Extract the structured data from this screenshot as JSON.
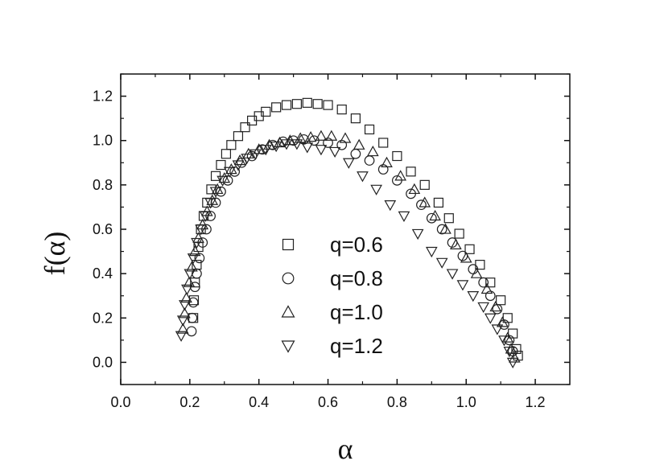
{
  "chart_data": {
    "type": "scatter",
    "title": "",
    "xlabel": "α",
    "ylabel": "f(α)",
    "xlim": [
      0.0,
      1.3
    ],
    "ylim": [
      -0.1,
      1.3
    ],
    "x_ticks": [
      0.0,
      0.2,
      0.4,
      0.6,
      0.8,
      1.0,
      1.2
    ],
    "x_tick_labels": [
      "0.0",
      "0.2",
      "0.4",
      "0.6",
      "0.8",
      "1.0",
      "1.2"
    ],
    "y_ticks": [
      0.0,
      0.2,
      0.4,
      0.6,
      0.8,
      1.0,
      1.2
    ],
    "y_tick_labels": [
      "0.0",
      "0.2",
      "0.4",
      "0.6",
      "0.8",
      "1.0",
      "1.2"
    ],
    "grid": false,
    "legend_position": "center",
    "series": [
      {
        "name": "q=0.6",
        "marker": "square",
        "points": [
          [
            0.21,
            0.2
          ],
          [
            0.212,
            0.28
          ],
          [
            0.215,
            0.36
          ],
          [
            0.22,
            0.44
          ],
          [
            0.225,
            0.52
          ],
          [
            0.232,
            0.6
          ],
          [
            0.24,
            0.66
          ],
          [
            0.25,
            0.72
          ],
          [
            0.262,
            0.78
          ],
          [
            0.275,
            0.84
          ],
          [
            0.29,
            0.89
          ],
          [
            0.305,
            0.94
          ],
          [
            0.32,
            0.98
          ],
          [
            0.34,
            1.02
          ],
          [
            0.36,
            1.06
          ],
          [
            0.38,
            1.09
          ],
          [
            0.4,
            1.11
          ],
          [
            0.42,
            1.13
          ],
          [
            0.45,
            1.15
          ],
          [
            0.48,
            1.16
          ],
          [
            0.51,
            1.165
          ],
          [
            0.54,
            1.17
          ],
          [
            0.57,
            1.165
          ],
          [
            0.6,
            1.16
          ],
          [
            0.64,
            1.14
          ],
          [
            0.68,
            1.1
          ],
          [
            0.72,
            1.05
          ],
          [
            0.76,
            0.99
          ],
          [
            0.8,
            0.93
          ],
          [
            0.84,
            0.86
          ],
          [
            0.88,
            0.8
          ],
          [
            0.92,
            0.72
          ],
          [
            0.95,
            0.65
          ],
          [
            0.98,
            0.58
          ],
          [
            1.01,
            0.51
          ],
          [
            1.04,
            0.44
          ],
          [
            1.07,
            0.36
          ],
          [
            1.1,
            0.28
          ],
          [
            1.12,
            0.2
          ],
          [
            1.135,
            0.13
          ],
          [
            1.145,
            0.06
          ],
          [
            1.15,
            0.03
          ]
        ]
      },
      {
        "name": "q=0.8",
        "marker": "circle",
        "points": [
          [
            0.205,
            0.14
          ],
          [
            0.207,
            0.2
          ],
          [
            0.21,
            0.27
          ],
          [
            0.215,
            0.34
          ],
          [
            0.22,
            0.4
          ],
          [
            0.228,
            0.47
          ],
          [
            0.237,
            0.54
          ],
          [
            0.248,
            0.6
          ],
          [
            0.26,
            0.66
          ],
          [
            0.275,
            0.72
          ],
          [
            0.29,
            0.77
          ],
          [
            0.31,
            0.82
          ],
          [
            0.33,
            0.86
          ],
          [
            0.35,
            0.9
          ],
          [
            0.38,
            0.93
          ],
          [
            0.41,
            0.96
          ],
          [
            0.44,
            0.98
          ],
          [
            0.47,
            0.995
          ],
          [
            0.5,
            1.0
          ],
          [
            0.53,
            1.005
          ],
          [
            0.56,
            1.0
          ],
          [
            0.6,
            0.99
          ],
          [
            0.64,
            0.98
          ],
          [
            0.68,
            0.94
          ],
          [
            0.72,
            0.91
          ],
          [
            0.76,
            0.87
          ],
          [
            0.8,
            0.82
          ],
          [
            0.84,
            0.76
          ],
          [
            0.87,
            0.71
          ],
          [
            0.9,
            0.65
          ],
          [
            0.93,
            0.6
          ],
          [
            0.96,
            0.54
          ],
          [
            0.99,
            0.48
          ],
          [
            1.02,
            0.42
          ],
          [
            1.05,
            0.36
          ],
          [
            1.07,
            0.3
          ],
          [
            1.09,
            0.24
          ],
          [
            1.11,
            0.17
          ],
          [
            1.125,
            0.1
          ],
          [
            1.135,
            0.05
          ]
        ]
      },
      {
        "name": "q=1.0",
        "marker": "triangle-up",
        "points": [
          [
            0.18,
            0.15
          ],
          [
            0.185,
            0.22
          ],
          [
            0.19,
            0.29
          ],
          [
            0.198,
            0.36
          ],
          [
            0.206,
            0.43
          ],
          [
            0.215,
            0.5
          ],
          [
            0.225,
            0.56
          ],
          [
            0.237,
            0.62
          ],
          [
            0.25,
            0.68
          ],
          [
            0.265,
            0.73
          ],
          [
            0.28,
            0.78
          ],
          [
            0.3,
            0.83
          ],
          [
            0.32,
            0.87
          ],
          [
            0.345,
            0.91
          ],
          [
            0.37,
            0.94
          ],
          [
            0.4,
            0.96
          ],
          [
            0.43,
            0.98
          ],
          [
            0.46,
            0.99
          ],
          [
            0.49,
            1.0
          ],
          [
            0.52,
            1.01
          ],
          [
            0.55,
            1.015
          ],
          [
            0.58,
            1.02
          ],
          [
            0.61,
            1.02
          ],
          [
            0.65,
            1.01
          ],
          [
            0.69,
            0.98
          ],
          [
            0.73,
            0.95
          ],
          [
            0.77,
            0.9
          ],
          [
            0.81,
            0.84
          ],
          [
            0.85,
            0.78
          ],
          [
            0.88,
            0.72
          ],
          [
            0.91,
            0.66
          ],
          [
            0.94,
            0.6
          ],
          [
            0.97,
            0.53
          ],
          [
            1.0,
            0.47
          ],
          [
            1.03,
            0.4
          ],
          [
            1.06,
            0.33
          ],
          [
            1.085,
            0.25
          ],
          [
            1.105,
            0.18
          ],
          [
            1.12,
            0.11
          ],
          [
            1.13,
            0.06
          ],
          [
            1.14,
            0.02
          ]
        ]
      },
      {
        "name": "q=1.2",
        "marker": "triangle-down",
        "points": [
          [
            0.175,
            0.12
          ],
          [
            0.18,
            0.19
          ],
          [
            0.185,
            0.26
          ],
          [
            0.192,
            0.33
          ],
          [
            0.2,
            0.4
          ],
          [
            0.21,
            0.47
          ],
          [
            0.22,
            0.54
          ],
          [
            0.232,
            0.6
          ],
          [
            0.245,
            0.66
          ],
          [
            0.26,
            0.72
          ],
          [
            0.275,
            0.77
          ],
          [
            0.295,
            0.82
          ],
          [
            0.315,
            0.86
          ],
          [
            0.34,
            0.89
          ],
          [
            0.365,
            0.92
          ],
          [
            0.39,
            0.94
          ],
          [
            0.42,
            0.96
          ],
          [
            0.45,
            0.975
          ],
          [
            0.48,
            0.985
          ],
          [
            0.51,
            0.985
          ],
          [
            0.54,
            0.97
          ],
          [
            0.58,
            0.96
          ],
          [
            0.62,
            0.95
          ],
          [
            0.66,
            0.9
          ],
          [
            0.7,
            0.84
          ],
          [
            0.74,
            0.78
          ],
          [
            0.78,
            0.71
          ],
          [
            0.82,
            0.66
          ],
          [
            0.86,
            0.58
          ],
          [
            0.9,
            0.5
          ],
          [
            0.93,
            0.45
          ],
          [
            0.96,
            0.4
          ],
          [
            0.99,
            0.35
          ],
          [
            1.02,
            0.3
          ],
          [
            1.05,
            0.25
          ],
          [
            1.07,
            0.2
          ],
          [
            1.09,
            0.15
          ],
          [
            1.11,
            0.1
          ],
          [
            1.125,
            0.05
          ],
          [
            1.135,
            0.0
          ]
        ]
      }
    ]
  }
}
